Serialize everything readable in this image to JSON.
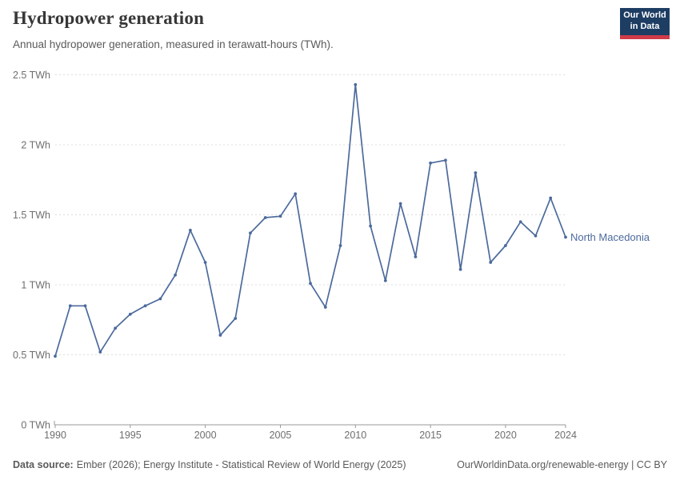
{
  "header": {
    "title": "Hydropower generation",
    "subtitle": "Annual hydropower generation, measured in terawatt-hours (TWh).",
    "logo": {
      "line1": "Our World",
      "line2": "in Data"
    }
  },
  "chart_data": {
    "type": "line",
    "title": "Hydropower generation",
    "xlabel": "",
    "ylabel": "",
    "unit": "TWh",
    "ylim": [
      0,
      2.5
    ],
    "grid": "horizontal-dashed",
    "legend_position": "end-of-line-label",
    "x": [
      1990,
      1991,
      1992,
      1993,
      1994,
      1995,
      1996,
      1997,
      1998,
      1999,
      2000,
      2001,
      2002,
      2003,
      2004,
      2005,
      2006,
      2007,
      2008,
      2009,
      2010,
      2011,
      2012,
      2013,
      2014,
      2015,
      2016,
      2017,
      2018,
      2019,
      2020,
      2021,
      2022,
      2023,
      2024
    ],
    "xticks": [
      1990,
      1995,
      2000,
      2005,
      2010,
      2015,
      2020,
      2024
    ],
    "yticks": [
      {
        "value": 0,
        "label": "0 TWh"
      },
      {
        "value": 0.5,
        "label": "0.5 TWh"
      },
      {
        "value": 1,
        "label": "1 TWh"
      },
      {
        "value": 1.5,
        "label": "1.5 TWh"
      },
      {
        "value": 2,
        "label": "2 TWh"
      },
      {
        "value": 2.5,
        "label": "2.5 TWh"
      }
    ],
    "series": [
      {
        "name": "North Macedonia",
        "color": "#4C6A9C",
        "values": [
          0.49,
          0.85,
          0.85,
          0.52,
          0.69,
          0.79,
          0.85,
          0.9,
          1.07,
          1.39,
          1.16,
          0.64,
          0.76,
          1.37,
          1.48,
          1.49,
          1.65,
          1.01,
          0.84,
          1.28,
          2.43,
          1.42,
          1.03,
          1.58,
          1.2,
          1.87,
          1.89,
          1.11,
          1.8,
          1.16,
          1.28,
          1.45,
          1.35,
          1.62,
          1.34
        ]
      }
    ]
  },
  "footer": {
    "source_label": "Data source:",
    "source_text": "Ember (2026); Energy Institute - Statistical Review of World Energy (2025)",
    "link_text": "OurWorldinData.org/renewable-energy | CC BY"
  },
  "colors": {
    "accent_line": "#4C6A9C",
    "logo_bg": "#1d3d63",
    "logo_stripe": "#cf3b49",
    "grid": "#dddddd",
    "axis": "#999999",
    "tick_text": "#6e6e6e",
    "title_text": "#373737",
    "subtitle_text": "#5a5a5a",
    "footer_text": "#5a5a5a"
  }
}
